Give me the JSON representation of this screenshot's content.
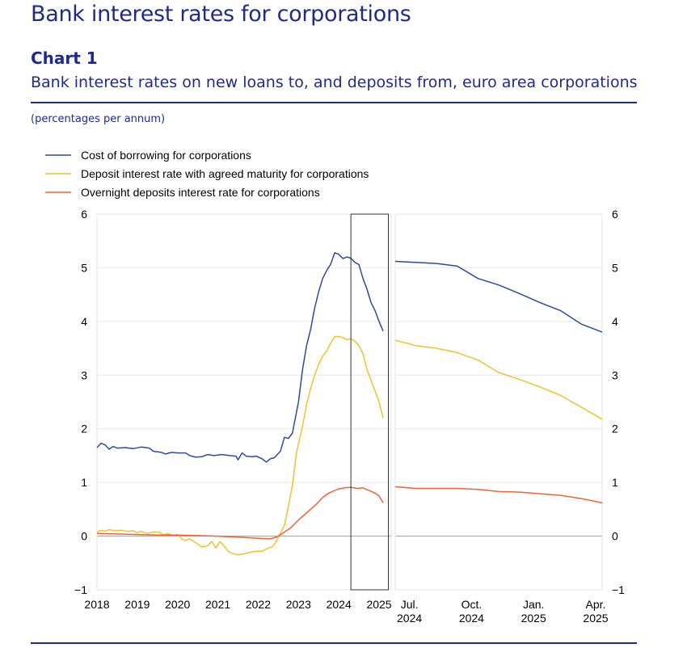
{
  "header": {
    "title": "Bank interest rates for corporations",
    "chart_label": "Chart 1",
    "subtitle": "Bank interest rates on new loans to, and deposits from, euro area corporations",
    "unit_note": "(percentages per annum)"
  },
  "colors": {
    "series1": "#2e4b9b",
    "series2": "#f2c12e",
    "series3": "#f06336",
    "text": "#1f2a8c"
  },
  "chart_data": {
    "type": "line",
    "title": "Bank interest rates on new loans to, and deposits from, euro area corporations",
    "ylabel": "percentages per annum",
    "ylim": [
      -1,
      6
    ],
    "yticks": [
      -1,
      0,
      1,
      2,
      3,
      4,
      5,
      6
    ],
    "ytick_labels": [
      "−1",
      "0",
      "1",
      "2",
      "3",
      "4",
      "5",
      "6"
    ],
    "grid": true,
    "legend": "top-left",
    "left_panel": {
      "x_unit": "years since Jan 2018",
      "xlim": [
        0,
        7.3
      ],
      "xticks": [
        0,
        1,
        2,
        3,
        4,
        5,
        6,
        7
      ],
      "xtick_labels": [
        "2018",
        "2019",
        "2020",
        "2021",
        "2022",
        "2023",
        "2024",
        "2025"
      ],
      "highlight_range": [
        6.3,
        7.23
      ]
    },
    "right_panel": {
      "x_unit": "months since Jun 2024",
      "xlim": [
        0,
        10
      ],
      "xticks": [
        1,
        4,
        7,
        10
      ],
      "xtick_labels": [
        [
          "Jul.",
          "2024"
        ],
        [
          "Oct.",
          "2024"
        ],
        [
          "Jan.",
          "2025"
        ],
        [
          "Apr.",
          "2025"
        ]
      ]
    },
    "series": [
      {
        "name": "Cost of borrowing for corporations",
        "left": [
          [
            0,
            1.65
          ],
          [
            0.1,
            1.73
          ],
          [
            0.2,
            1.7
          ],
          [
            0.3,
            1.62
          ],
          [
            0.4,
            1.67
          ],
          [
            0.5,
            1.64
          ],
          [
            0.7,
            1.65
          ],
          [
            0.9,
            1.63
          ],
          [
            1.1,
            1.66
          ],
          [
            1.3,
            1.64
          ],
          [
            1.4,
            1.58
          ],
          [
            1.6,
            1.56
          ],
          [
            1.7,
            1.53
          ],
          [
            1.85,
            1.56
          ],
          [
            2.0,
            1.55
          ],
          [
            2.2,
            1.55
          ],
          [
            2.3,
            1.5
          ],
          [
            2.45,
            1.47
          ],
          [
            2.6,
            1.48
          ],
          [
            2.75,
            1.52
          ],
          [
            2.9,
            1.5
          ],
          [
            3.1,
            1.52
          ],
          [
            3.3,
            1.5
          ],
          [
            3.45,
            1.49
          ],
          [
            3.5,
            1.42
          ],
          [
            3.6,
            1.55
          ],
          [
            3.7,
            1.49
          ],
          [
            3.85,
            1.48
          ],
          [
            3.95,
            1.49
          ],
          [
            4.1,
            1.44
          ],
          [
            4.2,
            1.38
          ],
          [
            4.3,
            1.44
          ],
          [
            4.4,
            1.46
          ],
          [
            4.55,
            1.58
          ],
          [
            4.65,
            1.84
          ],
          [
            4.75,
            1.82
          ],
          [
            4.85,
            1.92
          ],
          [
            5.0,
            2.5
          ],
          [
            5.1,
            3.1
          ],
          [
            5.2,
            3.55
          ],
          [
            5.3,
            3.85
          ],
          [
            5.4,
            4.25
          ],
          [
            5.5,
            4.55
          ],
          [
            5.6,
            4.8
          ],
          [
            5.7,
            4.95
          ],
          [
            5.8,
            5.07
          ],
          [
            5.9,
            5.28
          ],
          [
            6.0,
            5.25
          ],
          [
            6.1,
            5.17
          ],
          [
            6.2,
            5.2
          ],
          [
            6.3,
            5.18
          ],
          [
            6.4,
            5.1
          ],
          [
            6.5,
            5.06
          ],
          [
            6.6,
            4.8
          ],
          [
            6.7,
            4.6
          ],
          [
            6.8,
            4.35
          ],
          [
            6.9,
            4.2
          ],
          [
            7.0,
            4.0
          ],
          [
            7.1,
            3.82
          ]
        ],
        "right": [
          [
            0,
            5.12
          ],
          [
            1,
            5.1
          ],
          [
            2,
            5.08
          ],
          [
            3,
            5.03
          ],
          [
            4,
            4.8
          ],
          [
            5,
            4.68
          ],
          [
            6,
            4.52
          ],
          [
            7,
            4.35
          ],
          [
            8,
            4.2
          ],
          [
            9,
            3.95
          ],
          [
            10,
            3.8
          ]
        ]
      },
      {
        "name": "Deposit interest rate with agreed maturity for corporations",
        "left": [
          [
            0,
            0.07
          ],
          [
            0.1,
            0.11
          ],
          [
            0.2,
            0.09
          ],
          [
            0.3,
            0.12
          ],
          [
            0.45,
            0.1
          ],
          [
            0.6,
            0.11
          ],
          [
            0.75,
            0.09
          ],
          [
            0.9,
            0.1
          ],
          [
            1.0,
            0.06
          ],
          [
            1.1,
            0.09
          ],
          [
            1.25,
            0.05
          ],
          [
            1.4,
            0.08
          ],
          [
            1.55,
            0.07
          ],
          [
            1.65,
            0.02
          ],
          [
            1.75,
            0.05
          ],
          [
            1.9,
            0.01
          ],
          [
            2.0,
            0.03
          ],
          [
            2.1,
            -0.05
          ],
          [
            2.2,
            -0.08
          ],
          [
            2.3,
            -0.05
          ],
          [
            2.4,
            -0.1
          ],
          [
            2.5,
            -0.15
          ],
          [
            2.6,
            -0.2
          ],
          [
            2.75,
            -0.18
          ],
          [
            2.85,
            -0.1
          ],
          [
            2.95,
            -0.22
          ],
          [
            3.05,
            -0.1
          ],
          [
            3.15,
            -0.18
          ],
          [
            3.25,
            -0.28
          ],
          [
            3.35,
            -0.32
          ],
          [
            3.5,
            -0.35
          ],
          [
            3.65,
            -0.33
          ],
          [
            3.8,
            -0.3
          ],
          [
            3.95,
            -0.28
          ],
          [
            4.1,
            -0.28
          ],
          [
            4.25,
            -0.22
          ],
          [
            4.35,
            -0.2
          ],
          [
            4.45,
            -0.1
          ],
          [
            4.55,
            0.05
          ],
          [
            4.65,
            0.2
          ],
          [
            4.75,
            0.55
          ],
          [
            4.85,
            0.95
          ],
          [
            4.95,
            1.55
          ],
          [
            5.1,
            2.05
          ],
          [
            5.2,
            2.45
          ],
          [
            5.3,
            2.75
          ],
          [
            5.4,
            3.0
          ],
          [
            5.5,
            3.2
          ],
          [
            5.6,
            3.35
          ],
          [
            5.7,
            3.45
          ],
          [
            5.8,
            3.6
          ],
          [
            5.9,
            3.72
          ],
          [
            6.0,
            3.72
          ],
          [
            6.1,
            3.7
          ],
          [
            6.2,
            3.66
          ],
          [
            6.3,
            3.68
          ],
          [
            6.4,
            3.63
          ],
          [
            6.5,
            3.55
          ],
          [
            6.6,
            3.4
          ],
          [
            6.7,
            3.1
          ],
          [
            6.8,
            2.9
          ],
          [
            6.9,
            2.7
          ],
          [
            7.0,
            2.5
          ],
          [
            7.1,
            2.2
          ]
        ],
        "right": [
          [
            0,
            3.65
          ],
          [
            1,
            3.55
          ],
          [
            2,
            3.5
          ],
          [
            3,
            3.42
          ],
          [
            4,
            3.28
          ],
          [
            5,
            3.05
          ],
          [
            6,
            2.92
          ],
          [
            7,
            2.78
          ],
          [
            8,
            2.62
          ],
          [
            9,
            2.4
          ],
          [
            10,
            2.18
          ]
        ]
      },
      {
        "name": "Overnight deposits interest rate for corporations",
        "left": [
          [
            0,
            0.05
          ],
          [
            0.5,
            0.04
          ],
          [
            1.0,
            0.03
          ],
          [
            1.5,
            0.02
          ],
          [
            2.0,
            0.02
          ],
          [
            2.5,
            0.01
          ],
          [
            3.0,
            0.0
          ],
          [
            3.5,
            -0.02
          ],
          [
            4.0,
            -0.04
          ],
          [
            4.3,
            -0.05
          ],
          [
            4.45,
            -0.02
          ],
          [
            4.6,
            0.05
          ],
          [
            4.8,
            0.15
          ],
          [
            5.0,
            0.3
          ],
          [
            5.15,
            0.4
          ],
          [
            5.3,
            0.5
          ],
          [
            5.45,
            0.6
          ],
          [
            5.6,
            0.72
          ],
          [
            5.75,
            0.8
          ],
          [
            5.9,
            0.85
          ],
          [
            6.0,
            0.88
          ],
          [
            6.15,
            0.9
          ],
          [
            6.3,
            0.91
          ],
          [
            6.45,
            0.89
          ],
          [
            6.6,
            0.9
          ],
          [
            6.75,
            0.85
          ],
          [
            6.9,
            0.8
          ],
          [
            7.0,
            0.75
          ],
          [
            7.1,
            0.62
          ]
        ],
        "right": [
          [
            0,
            0.92
          ],
          [
            1,
            0.89
          ],
          [
            2,
            0.89
          ],
          [
            3,
            0.89
          ],
          [
            4,
            0.87
          ],
          [
            5,
            0.83
          ],
          [
            6,
            0.82
          ],
          [
            7,
            0.79
          ],
          [
            8,
            0.76
          ],
          [
            9,
            0.7
          ],
          [
            10,
            0.62
          ]
        ]
      }
    ]
  }
}
